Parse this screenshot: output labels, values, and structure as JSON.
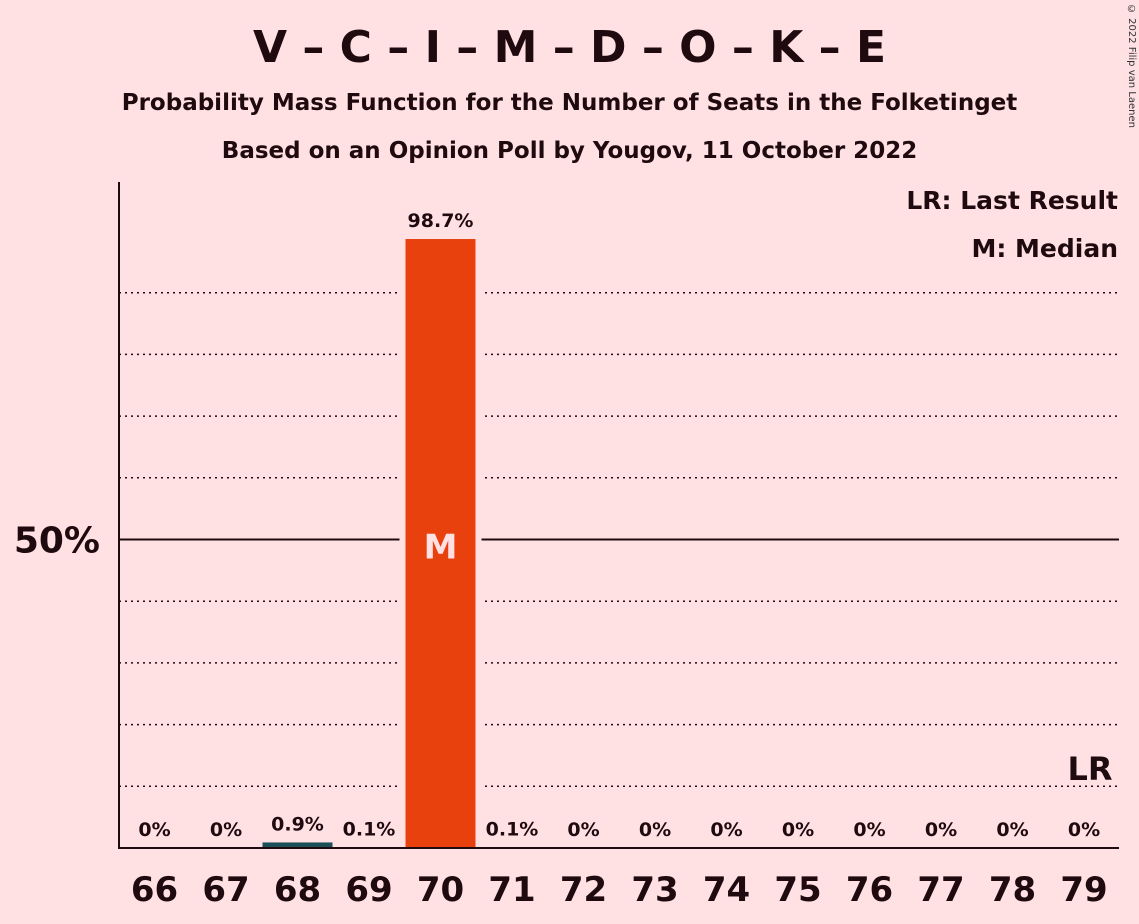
{
  "title": "V – C – I – M – D – O – K – E",
  "subtitle_1": "Probability Mass Function for the Number of Seats in the Folketinget",
  "subtitle_2": "Based on an Opinion Poll by Yougov, 11 October 2022",
  "copyright": "© 2022 Filip van Laenen",
  "legend": {
    "last_result": "LR: Last Result",
    "median": "M: Median"
  },
  "colors": {
    "background": "#ffe1e4",
    "median_bar": "#e8410e",
    "other_bar": "#1b4f57",
    "text": "#1f0a0f"
  },
  "chart_data": {
    "type": "bar",
    "categories": [
      66,
      67,
      68,
      69,
      70,
      71,
      72,
      73,
      74,
      75,
      76,
      77,
      78,
      79
    ],
    "values": [
      0,
      0,
      0.9,
      0.1,
      98.7,
      0.1,
      0,
      0,
      0,
      0,
      0,
      0,
      0,
      0
    ],
    "value_labels": [
      "0%",
      "0%",
      "0.9%",
      "0.1%",
      "98.7%",
      "0.1%",
      "0%",
      "0%",
      "0%",
      "0%",
      "0%",
      "0%",
      "0%",
      "0%"
    ],
    "ylim": [
      0,
      100
    ],
    "y_tick_label": "50%",
    "y_tick_value": 50,
    "gridlines": [
      10,
      20,
      30,
      40,
      60,
      70,
      80,
      90
    ],
    "median_seat": 70,
    "median_marker": "M",
    "last_result_seat": 79,
    "last_result_marker": "LR"
  }
}
